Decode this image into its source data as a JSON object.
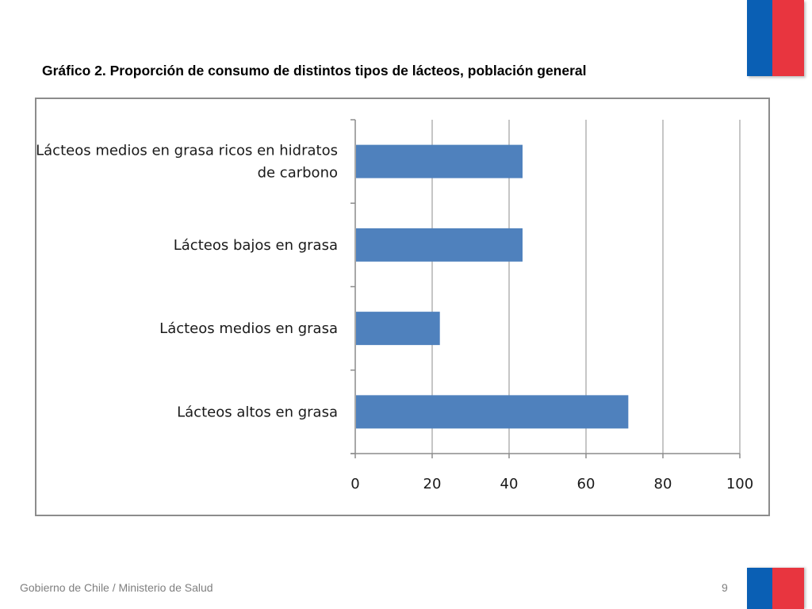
{
  "slide": {
    "title": "Gráfico 2. Proporción de consumo de distintos tipos de lácteos, población general",
    "footer": "Gobierno de Chile / Ministerio de Salud",
    "page_number": "9"
  },
  "colors": {
    "bar": "#4f81bd",
    "grid": "#8c8c8c",
    "flag_blue": "#0a5fb4",
    "flag_red": "#e8353f"
  },
  "chart_data": {
    "type": "bar",
    "orientation": "horizontal",
    "categories": [
      [
        "Lácteos medios en grasa ricos en hidratos",
        "de carbono"
      ],
      [
        "Lácteos bajos en grasa"
      ],
      [
        "Lácteos medios en grasa"
      ],
      [
        "Lácteos altos en grasa"
      ]
    ],
    "values": [
      43.5,
      43.5,
      22,
      71
    ],
    "xlim": [
      0,
      100
    ],
    "x_ticks": [
      "0",
      "20",
      "40",
      "60",
      "80",
      "100"
    ],
    "grid": true,
    "legend": false,
    "title": "",
    "xlabel": "",
    "ylabel": ""
  }
}
